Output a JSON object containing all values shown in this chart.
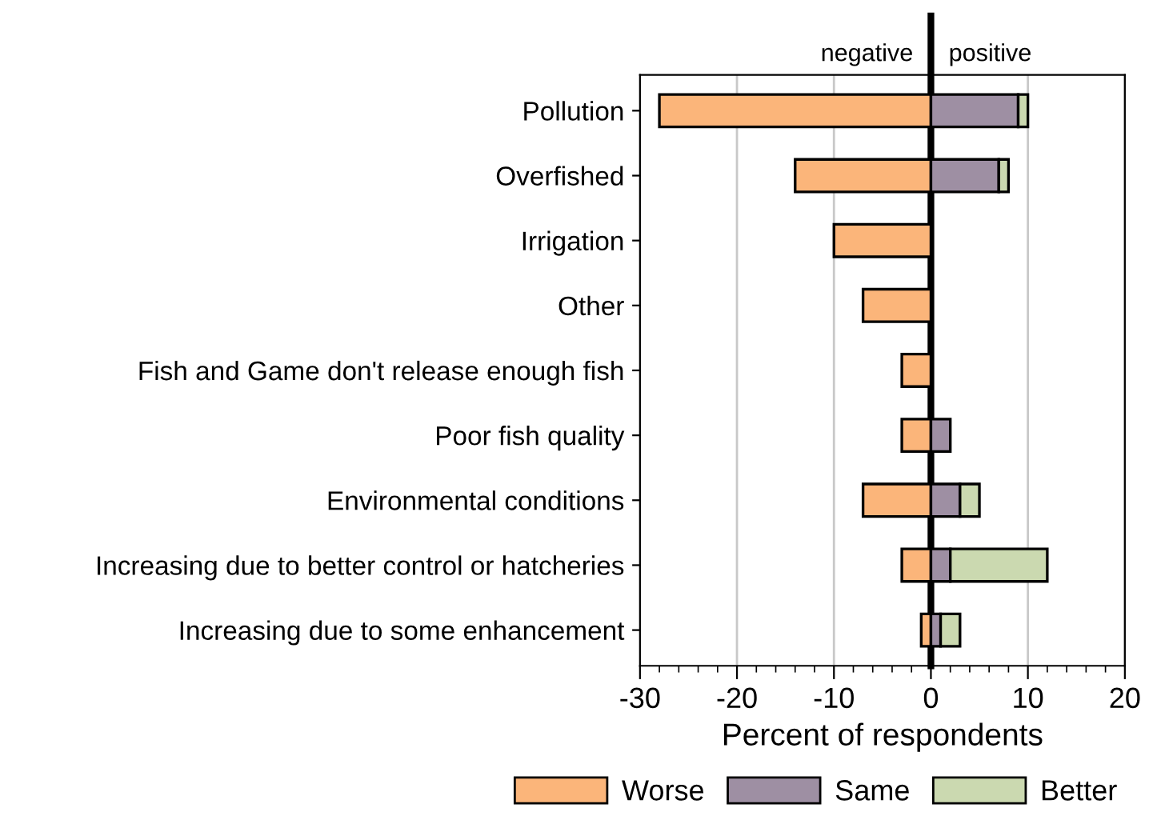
{
  "chart_data": {
    "type": "bar",
    "orientation": "horizontal",
    "stacked": true,
    "xlabel": "Percent of respondents",
    "categories": [
      "Pollution",
      "Overfished",
      "Irrigation",
      "Other",
      "Fish and Game don't release enough fish",
      "Poor fish quality",
      "Environmental conditions",
      "Increasing due to better control or hatcheries",
      "Increasing due to some enhancement"
    ],
    "series": [
      {
        "name": "Worse",
        "color": "#fbb57a",
        "values": [
          -28,
          -14,
          -10,
          -7,
          -3,
          -3,
          -7,
          -3,
          -1
        ]
      },
      {
        "name": "Same",
        "color": "#9e8fa3",
        "values": [
          9,
          7,
          0,
          0,
          0,
          2,
          3,
          2,
          1
        ]
      },
      {
        "name": "Better",
        "color": "#cbd9b0",
        "values": [
          1,
          1,
          0,
          0,
          0,
          0,
          2,
          10,
          2
        ]
      }
    ],
    "xlim": [
      -30,
      20
    ],
    "xticks": [
      -30,
      -20,
      -10,
      0,
      10,
      20
    ],
    "grid": "x",
    "legend": "bottom",
    "ref_lines": [
      {
        "axis": "x",
        "value": 0,
        "color": "#000000"
      }
    ],
    "annotations": [
      "negative",
      "positive"
    ]
  }
}
